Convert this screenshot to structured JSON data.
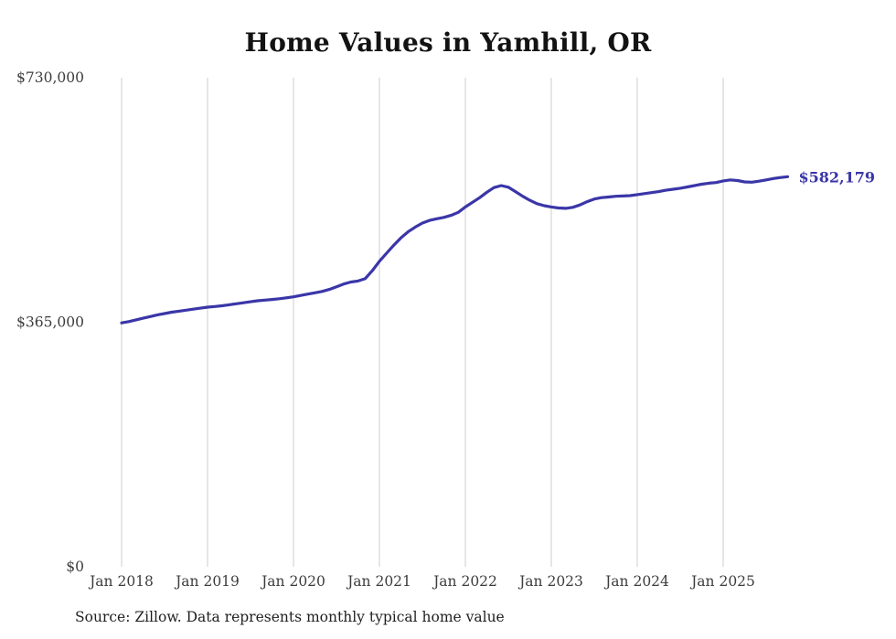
{
  "chart_data": {
    "type": "line",
    "title": "Home Values in Yamhill, OR",
    "series_name": "Monthly typical home value",
    "months": [
      "2018-01",
      "2018-02",
      "2018-03",
      "2018-04",
      "2018-05",
      "2018-06",
      "2018-07",
      "2018-08",
      "2018-09",
      "2018-10",
      "2018-11",
      "2018-12",
      "2019-01",
      "2019-02",
      "2019-03",
      "2019-04",
      "2019-05",
      "2019-06",
      "2019-07",
      "2019-08",
      "2019-09",
      "2019-10",
      "2019-11",
      "2019-12",
      "2020-01",
      "2020-02",
      "2020-03",
      "2020-04",
      "2020-05",
      "2020-06",
      "2020-07",
      "2020-08",
      "2020-09",
      "2020-10",
      "2020-11",
      "2020-12",
      "2021-01",
      "2021-02",
      "2021-03",
      "2021-04",
      "2021-05",
      "2021-06",
      "2021-07",
      "2021-08",
      "2021-09",
      "2021-10",
      "2021-11",
      "2021-12",
      "2022-01",
      "2022-02",
      "2022-03",
      "2022-04",
      "2022-05",
      "2022-06",
      "2022-07",
      "2022-08",
      "2022-09",
      "2022-10",
      "2022-11",
      "2022-12",
      "2023-01",
      "2023-02",
      "2023-03",
      "2023-04",
      "2023-05",
      "2023-06",
      "2023-07",
      "2023-08",
      "2023-09",
      "2023-10",
      "2023-11",
      "2023-12",
      "2024-01",
      "2024-02",
      "2024-03",
      "2024-04",
      "2024-05",
      "2024-06",
      "2024-07",
      "2024-08",
      "2024-09",
      "2024-10",
      "2024-11",
      "2024-12",
      "2025-01",
      "2025-02",
      "2025-03",
      "2025-04",
      "2025-05",
      "2025-06",
      "2025-07",
      "2025-08",
      "2025-09",
      "2025-10"
    ],
    "values": [
      364000,
      366000,
      368500,
      371000,
      373500,
      376000,
      378000,
      380000,
      381500,
      383000,
      384500,
      386000,
      387500,
      388500,
      389500,
      391000,
      392500,
      394000,
      395500,
      397000,
      398000,
      399000,
      400000,
      401500,
      403000,
      405000,
      407000,
      409000,
      411000,
      414000,
      418000,
      422000,
      425000,
      426500,
      430000,
      442000,
      456000,
      468000,
      480000,
      491000,
      500000,
      507000,
      513000,
      517000,
      519500,
      521500,
      524500,
      529000,
      537000,
      544000,
      551000,
      559000,
      566000,
      569000,
      566500,
      560000,
      553000,
      547000,
      542000,
      539000,
      537000,
      535500,
      535000,
      536500,
      540000,
      545000,
      549000,
      551000,
      552000,
      553000,
      553500,
      554000,
      555500,
      557000,
      558500,
      560000,
      562000,
      563500,
      565000,
      567000,
      569000,
      571000,
      572500,
      573500,
      576000,
      577500,
      576500,
      574500,
      574000,
      575500,
      577500,
      579500,
      581000,
      582179
    ],
    "ylim": [
      0,
      730000
    ],
    "y_ticks": [
      {
        "value": 0,
        "label": "$0"
      },
      {
        "value": 365000,
        "label": "$365,000"
      },
      {
        "value": 730000,
        "label": "$730,000"
      }
    ],
    "x_ticks": [
      {
        "month_index": 0,
        "label": "Jan 2018"
      },
      {
        "month_index": 12,
        "label": "Jan 2019"
      },
      {
        "month_index": 24,
        "label": "Jan 2020"
      },
      {
        "month_index": 36,
        "label": "Jan 2021"
      },
      {
        "month_index": 48,
        "label": "Jan 2022"
      },
      {
        "month_index": 60,
        "label": "Jan 2023"
      },
      {
        "month_index": 72,
        "label": "Jan 2024"
      },
      {
        "month_index": 84,
        "label": "Jan 2025"
      }
    ],
    "grid": "vertical-only",
    "legend": "none",
    "line_color": "#3a36a8",
    "gridline_color": "#cccccc",
    "end_label": "$582,179",
    "end_value": 582179,
    "source_note": "Source: Zillow. Data represents monthly typical home value"
  }
}
